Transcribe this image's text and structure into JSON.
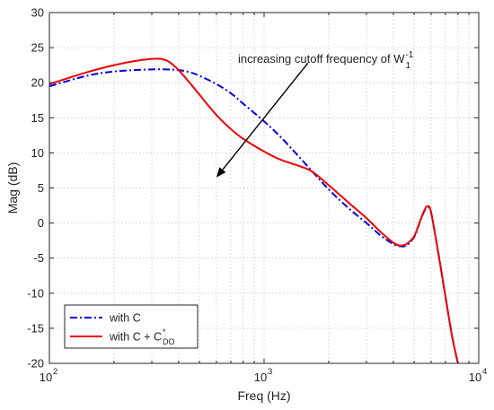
{
  "chart_data": {
    "type": "line",
    "xscale": "log",
    "xlim": [
      100,
      10000
    ],
    "ylim": [
      -20,
      30
    ],
    "xlabel": "Freq (Hz)",
    "ylabel": "Mag (dB)",
    "xticks": [
      {
        "value": 100,
        "base": "10",
        "exp": "2"
      },
      {
        "value": 1000,
        "base": "10",
        "exp": "3"
      },
      {
        "value": 10000,
        "base": "10",
        "exp": "4"
      }
    ],
    "yticks": [
      -20,
      -15,
      -10,
      -5,
      0,
      5,
      10,
      15,
      20,
      25,
      30
    ],
    "grid": true,
    "legend_position": "bottom-left",
    "annotation": {
      "text": "increasing cutoff frequency of W",
      "sub": "1",
      "sup": "-1",
      "arrow_from": {
        "x": 1600,
        "y": 22.8
      },
      "arrow_to": {
        "x": 600,
        "y": 6.5
      }
    },
    "series": [
      {
        "name": "with C",
        "color": "#0000dd",
        "style": "dashdot",
        "x": [
          100,
          150,
          200,
          250,
          300,
          350,
          400,
          450,
          500,
          600,
          700,
          800,
          1000,
          1200,
          1500,
          2000,
          2500,
          3000,
          3500,
          4000,
          4300,
          4600,
          5000,
          5300,
          5600,
          5800,
          6000,
          6500,
          7000,
          7500,
          8000
        ],
        "y": [
          19.5,
          21.0,
          21.6,
          21.8,
          21.9,
          21.9,
          21.8,
          21.5,
          21.0,
          19.8,
          18.5,
          17.0,
          14.5,
          12.2,
          9.0,
          4.8,
          2.0,
          0.0,
          -1.8,
          -3.0,
          -3.3,
          -3.2,
          -2.0,
          0.0,
          1.8,
          2.2,
          1.5,
          -4.5,
          -10.5,
          -16.0,
          -20.0
        ]
      },
      {
        "name": "with C + C",
        "name_sub": "DO",
        "name_sup": "*",
        "color": "#ee0000",
        "style": "solid",
        "x": [
          100,
          150,
          200,
          250,
          300,
          330,
          360,
          400,
          450,
          500,
          600,
          700,
          800,
          1000,
          1200,
          1500,
          1700,
          2000,
          2500,
          3000,
          3500,
          4000,
          4300,
          4600,
          5000,
          5300,
          5600,
          5800,
          6000,
          6500,
          7000,
          7500,
          8000
        ],
        "y": [
          19.8,
          21.5,
          22.5,
          23.1,
          23.4,
          23.4,
          23.0,
          21.8,
          20.0,
          18.3,
          15.4,
          13.4,
          12.0,
          10.2,
          9.0,
          8.0,
          7.2,
          5.4,
          2.8,
          0.7,
          -1.3,
          -2.8,
          -3.2,
          -3.0,
          -1.9,
          0.1,
          1.9,
          2.4,
          1.5,
          -4.5,
          -10.5,
          -16.0,
          -20.0
        ]
      }
    ]
  }
}
